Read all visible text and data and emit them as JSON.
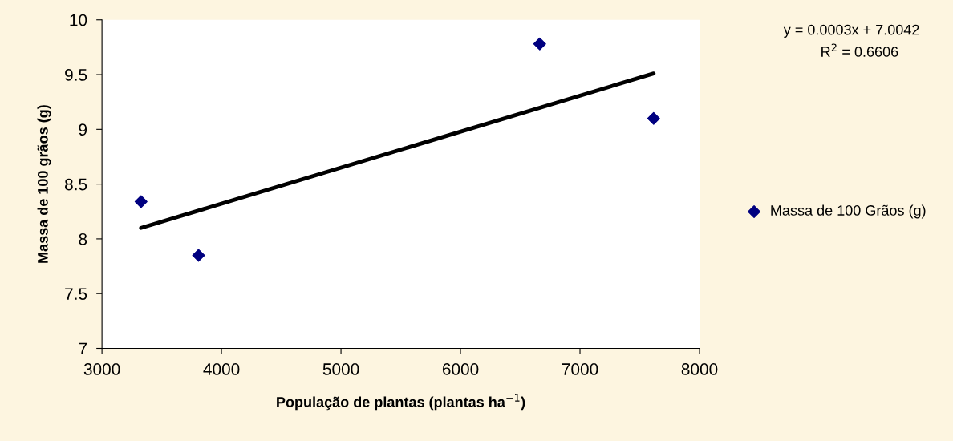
{
  "chart_data": {
    "type": "scatter",
    "xlabel": "População de plantas (plantas ha$^{−1}$)",
    "ylabel": "Massa de 100 grãos (g)",
    "xlim": [
      3000,
      8000
    ],
    "xticks": [
      3000,
      4000,
      5000,
      6000,
      7000,
      8000
    ],
    "ylim": [
      7,
      10
    ],
    "yticks": [
      7,
      7.5,
      8,
      8.5,
      9,
      9.5,
      10
    ],
    "grid": false,
    "legend": "right",
    "series": [
      {
        "name": "Massa de 100 Grãos (g)",
        "marker": "diamond",
        "color": "#000080",
        "x": [
          3327,
          3808,
          6663,
          7616
        ],
        "values": [
          8.34,
          7.85,
          9.78,
          9.1
        ]
      },
      {
        "type": "line",
        "color": "#000000",
        "line_style": "solid",
        "x": [
          3327,
          7616
        ],
        "values": [
          8.1,
          9.51
        ]
      }
    ],
    "annotations": [
      "y = 0.0003x + 7.0042",
      "R$^{2}$ = 0.6606"
    ]
  }
}
